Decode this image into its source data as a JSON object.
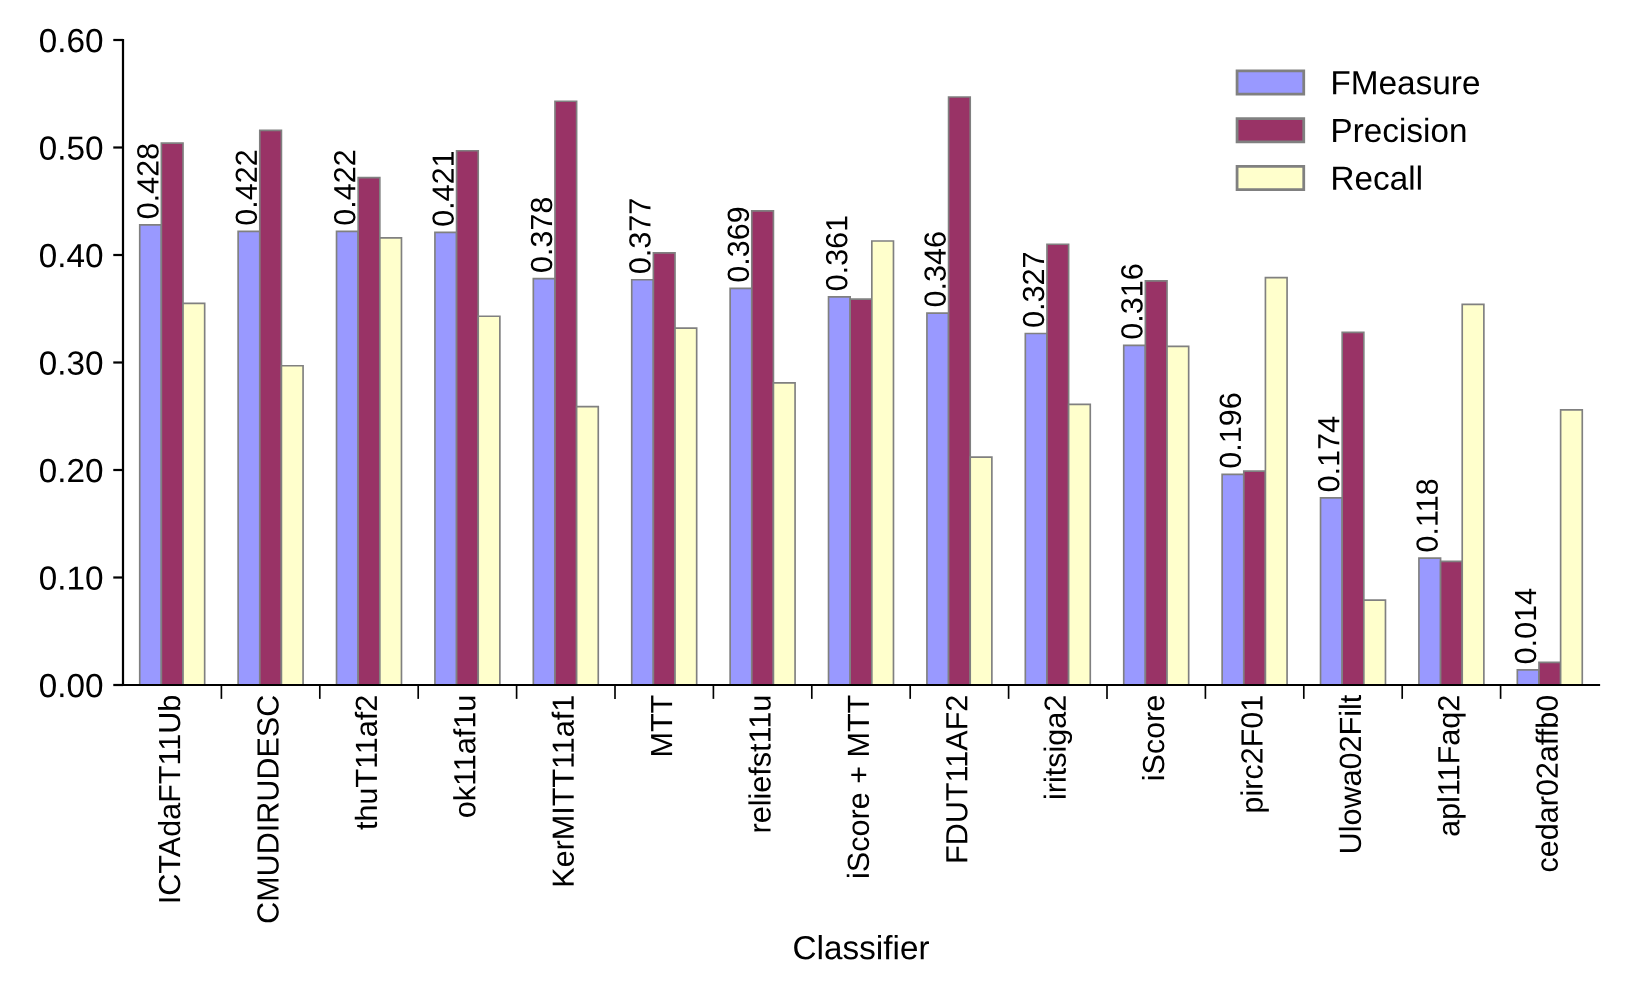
{
  "chart_data": {
    "type": "bar",
    "xlabel": "Classifier",
    "categories": [
      "ICTAdaFT11Ub",
      "CMUDIRUDESC",
      "thuT11af2",
      "ok11af1u",
      "KerMITT11af1",
      "MTT",
      "reliefst11u",
      "iScore + MTT",
      "FDUT11AF2",
      "iritsiga2",
      "iScore",
      "pirc2F01",
      "Ulowa02Filt",
      "apl11Faq2",
      "cedar02affb0"
    ],
    "series": [
      {
        "name": "FMeasure",
        "color": "#9999ff",
        "values": [
          0.428,
          0.422,
          0.422,
          0.421,
          0.378,
          0.377,
          0.369,
          0.361,
          0.346,
          0.327,
          0.316,
          0.196,
          0.174,
          0.118,
          0.014
        ],
        "value_labels": [
          "0.428",
          "0.422",
          "0.422",
          "0.421",
          "0.378",
          "0.377",
          "0.369",
          "0.361",
          "0.346",
          "0.327",
          "0.316",
          "0.196",
          "0.174",
          "0.118",
          "0.014"
        ]
      },
      {
        "name": "Precision",
        "color": "#993366",
        "values": [
          0.504,
          0.516,
          0.472,
          0.497,
          0.543,
          0.402,
          0.441,
          0.359,
          0.547,
          0.41,
          0.376,
          0.199,
          0.328,
          0.115,
          0.021
        ]
      },
      {
        "name": "Recall",
        "color": "#ffffcc",
        "values": [
          0.355,
          0.297,
          0.416,
          0.343,
          0.259,
          0.332,
          0.281,
          0.413,
          0.212,
          0.261,
          0.315,
          0.379,
          0.079,
          0.354,
          0.256
        ]
      }
    ],
    "ylim": [
      0,
      0.6
    ],
    "yticks": [
      {
        "value": 0,
        "label": "0.00"
      },
      {
        "value": 0.1,
        "label": "0.10"
      },
      {
        "value": 0.2,
        "label": "0.20"
      },
      {
        "value": 0.3,
        "label": "0.30"
      },
      {
        "value": 0.4,
        "label": "0.40"
      },
      {
        "value": 0.5,
        "label": "0.50"
      },
      {
        "value": 0.6,
        "label": "0.60"
      }
    ],
    "grid": false,
    "legend": "top right"
  }
}
